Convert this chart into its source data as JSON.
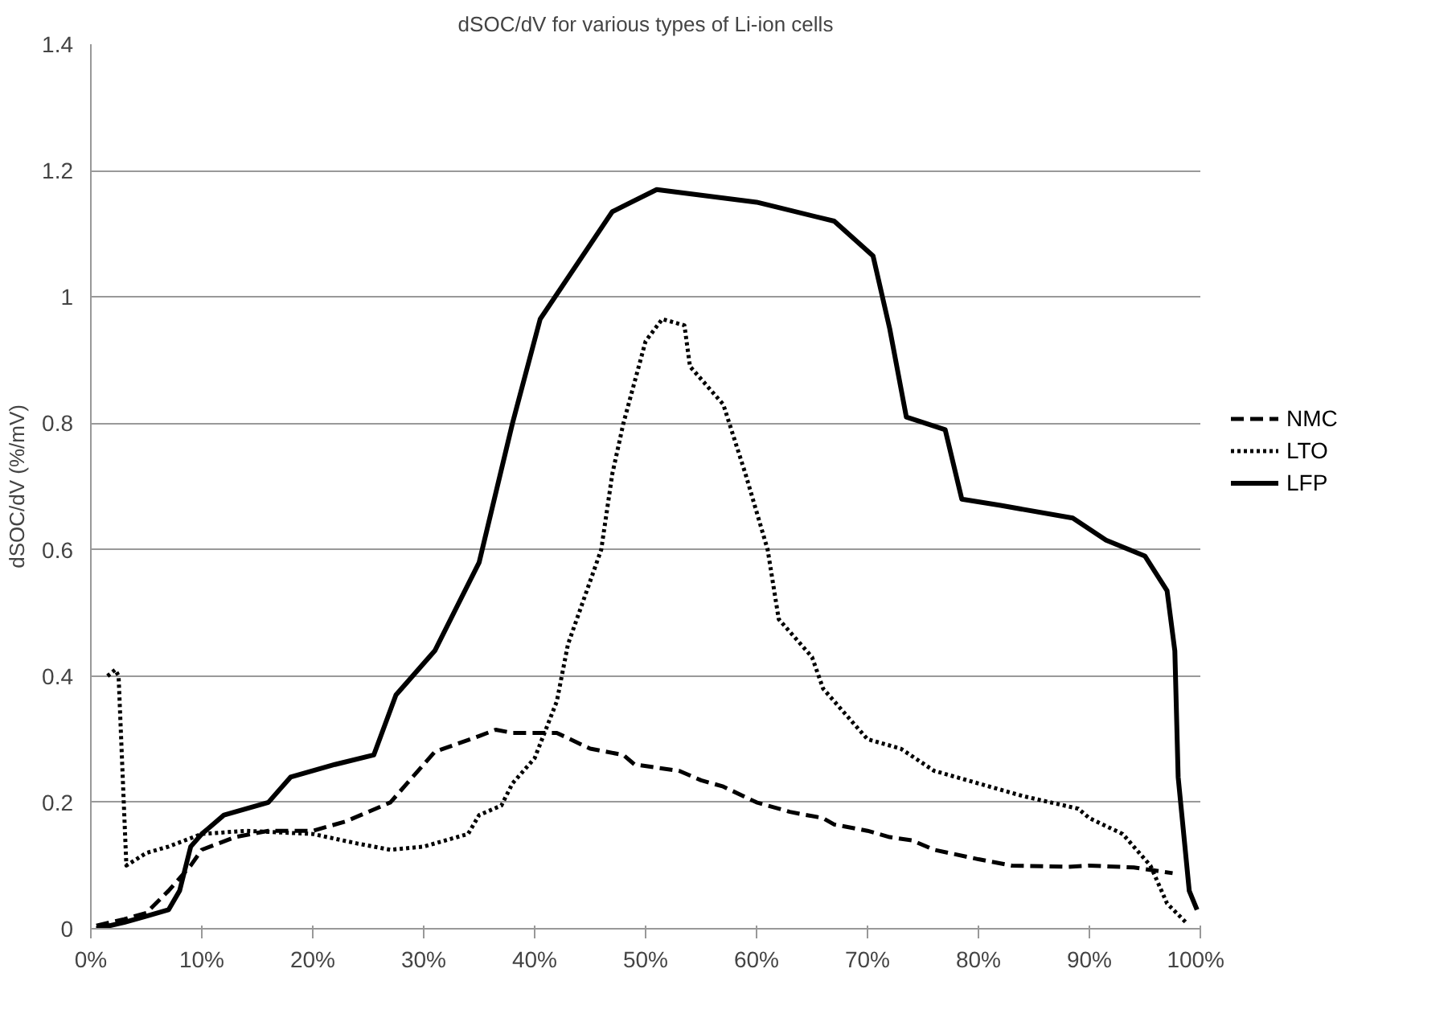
{
  "chart_data": {
    "type": "line",
    "title": "dSOC/dV for various types of Li-ion cells",
    "ylabel": "dSOC/dV (%/mV)",
    "xlim": [
      0,
      100
    ],
    "ylim": [
      0,
      1.4
    ],
    "xticks": [
      {
        "value": 0,
        "label": "0%"
      },
      {
        "value": 10,
        "label": "10%"
      },
      {
        "value": 20,
        "label": "20%"
      },
      {
        "value": 30,
        "label": "30%"
      },
      {
        "value": 40,
        "label": "40%"
      },
      {
        "value": 50,
        "label": "50%"
      },
      {
        "value": 60,
        "label": "60%"
      },
      {
        "value": 70,
        "label": "70%"
      },
      {
        "value": 80,
        "label": "80%"
      },
      {
        "value": 90,
        "label": "90%"
      },
      {
        "value": 100,
        "label": "100%"
      }
    ],
    "yticks": [
      0,
      0.2,
      0.4,
      0.6,
      0.8,
      1,
      1.2,
      1.4
    ],
    "grid": "y",
    "legend": "right",
    "series": [
      {
        "name": "NMC",
        "color": "#000000",
        "line_style": "dashed",
        "x": [
          0.5,
          3,
          5,
          7,
          9,
          10,
          13,
          16,
          20,
          23,
          27,
          30,
          31,
          35,
          36.5,
          38,
          42,
          45,
          48,
          49,
          53,
          55,
          57,
          60,
          63,
          66,
          67,
          70,
          72,
          74,
          76,
          80,
          83,
          88,
          90,
          94,
          97.5
        ],
        "values": [
          0.005,
          0.015,
          0.025,
          0.06,
          0.1,
          0.125,
          0.145,
          0.155,
          0.155,
          0.17,
          0.2,
          0.26,
          0.28,
          0.305,
          0.315,
          0.31,
          0.31,
          0.285,
          0.275,
          0.26,
          0.25,
          0.235,
          0.225,
          0.2,
          0.185,
          0.175,
          0.165,
          0.155,
          0.145,
          0.14,
          0.125,
          0.11,
          0.1,
          0.098,
          0.1,
          0.097,
          0.088
        ]
      },
      {
        "name": "LTO",
        "color": "#000000",
        "line_style": "dotted",
        "x": [
          1.5,
          2.2,
          2.5,
          3.2,
          5,
          7,
          10,
          14,
          20,
          24,
          27,
          30,
          34,
          35,
          37,
          38,
          40,
          42,
          43,
          45,
          46,
          47,
          48,
          50,
          51.5,
          53.5,
          54,
          57,
          59,
          61,
          62,
          65,
          66,
          70,
          73,
          76,
          80,
          84,
          89,
          90,
          93,
          95.5,
          97,
          98.7
        ],
        "values": [
          0.4,
          0.41,
          0.4,
          0.1,
          0.12,
          0.13,
          0.15,
          0.155,
          0.15,
          0.135,
          0.125,
          0.13,
          0.15,
          0.18,
          0.195,
          0.23,
          0.27,
          0.36,
          0.45,
          0.55,
          0.6,
          0.72,
          0.8,
          0.93,
          0.965,
          0.955,
          0.89,
          0.83,
          0.72,
          0.6,
          0.49,
          0.43,
          0.38,
          0.3,
          0.285,
          0.25,
          0.23,
          0.21,
          0.19,
          0.175,
          0.15,
          0.1,
          0.04,
          0.01
        ]
      },
      {
        "name": "LFP",
        "color": "#000000",
        "line_style": "solid",
        "x": [
          0.5,
          3,
          5,
          7,
          8,
          9,
          10,
          12,
          16,
          17,
          18,
          22,
          25.5,
          27.5,
          31,
          35,
          38,
          40.5,
          47,
          51,
          60,
          67,
          70.5,
          72,
          73.5,
          77,
          78.5,
          82,
          88.5,
          91.5,
          95,
          97,
          97.7,
          98,
          99,
          99.7
        ],
        "values": [
          0,
          0.01,
          0.02,
          0.03,
          0.06,
          0.13,
          0.15,
          0.18,
          0.2,
          0.22,
          0.24,
          0.26,
          0.275,
          0.37,
          0.44,
          0.58,
          0.8,
          0.965,
          1.135,
          1.17,
          1.15,
          1.12,
          1.065,
          0.95,
          0.81,
          0.79,
          0.68,
          0.67,
          0.65,
          0.615,
          0.59,
          0.535,
          0.44,
          0.24,
          0.06,
          0.03
        ]
      }
    ]
  }
}
